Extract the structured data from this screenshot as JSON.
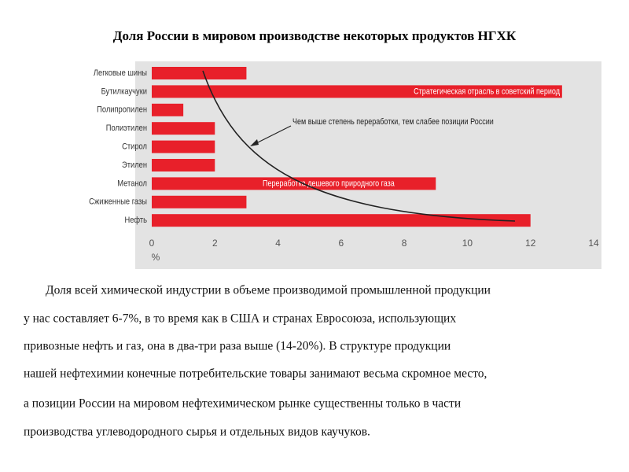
{
  "chart_data": {
    "type": "bar",
    "orientation": "horizontal",
    "title": "Доля России в мировом производстве некоторых продуктов НГХК",
    "categories": [
      "Легковые шины",
      "Бутилкаучуки",
      "Полипропилен",
      "Полиэтилен",
      "Стирол",
      "Этилен",
      "Метанол",
      "Сжиженные газы",
      "Нефть"
    ],
    "values": [
      3,
      13,
      1,
      2,
      2,
      2,
      9,
      3,
      12
    ],
    "color": "#e8202a",
    "xlim": [
      0,
      14
    ],
    "xticks": [
      0,
      2,
      4,
      6,
      8,
      10,
      12,
      14
    ],
    "x_label": "%",
    "annotations": [
      "Стратегическая отрасль в советский период",
      "Переработка дешевого природного газа",
      "Чем выше степень переработки, тем слабее позиции России"
    ]
  },
  "paragraph": [
    "Доля всей химической индустрии в объеме производимой промышленной продукции",
    "у нас составляет 6-7%, в то время как в США и странах Евросоюза, использующих",
    "привозные нефть и газ, она в два-три раза выше  (14-20%). В структуре продукции",
    "нашей нефтехимии конечные потребительские товары занимают весьма скромное место,",
    "а позиции России на мировом нефтехимическом рынке существенны только в части",
    "производства углеводородного сырья и отдельных видов каучуков."
  ]
}
